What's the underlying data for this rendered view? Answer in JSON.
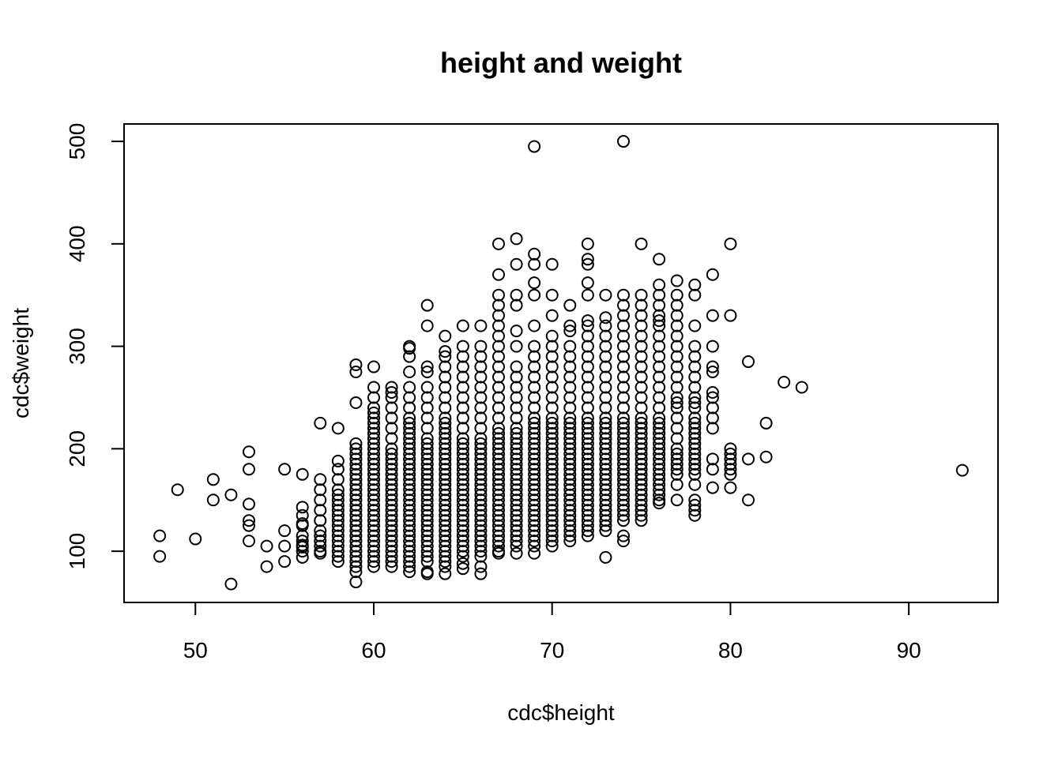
{
  "chart_data": {
    "type": "scatter",
    "title": "height and weight",
    "xlabel": "cdc$height",
    "ylabel": "cdc$weight",
    "xlim": [
      46,
      95
    ],
    "ylim": [
      50,
      517
    ],
    "x_ticks": [
      50,
      60,
      70,
      80,
      90
    ],
    "y_ticks": [
      100,
      200,
      300,
      400,
      500
    ],
    "grid": false,
    "marker": "open-circle",
    "point_color": "#000000",
    "clusters": [
      {
        "x": 56,
        "weights": [
          94,
          100,
          104,
          106,
          110,
          115,
          125,
          127,
          135,
          143,
          175
        ]
      },
      {
        "x": 57,
        "weights": [
          98,
          100,
          105,
          110,
          115,
          120,
          130,
          140,
          150,
          160,
          170,
          225
        ]
      },
      {
        "x": 58,
        "weights": [
          90,
          95,
          100,
          105,
          110,
          115,
          120,
          125,
          130,
          135,
          140,
          145,
          150,
          155,
          160,
          170,
          180,
          188,
          220
        ]
      },
      {
        "x": 59,
        "weights": [
          70,
          80,
          85,
          90,
          95,
          100,
          105,
          110,
          115,
          120,
          125,
          130,
          135,
          140,
          145,
          150,
          155,
          160,
          165,
          170,
          175,
          180,
          185,
          190,
          195,
          200,
          205,
          245,
          275,
          282
        ]
      },
      {
        "x": 60,
        "weights": [
          85,
          90,
          95,
          100,
          105,
          110,
          115,
          120,
          125,
          130,
          135,
          140,
          145,
          150,
          155,
          160,
          165,
          170,
          175,
          180,
          185,
          190,
          195,
          200,
          205,
          210,
          215,
          220,
          225,
          230,
          235,
          240,
          250,
          260,
          280
        ]
      },
      {
        "x": 61,
        "weights": [
          85,
          90,
          95,
          100,
          105,
          110,
          115,
          120,
          125,
          130,
          135,
          140,
          145,
          150,
          155,
          160,
          165,
          170,
          175,
          180,
          185,
          190,
          195,
          200,
          210,
          220,
          230,
          240,
          250,
          255,
          260
        ]
      },
      {
        "x": 62,
        "weights": [
          80,
          85,
          90,
          95,
          100,
          105,
          110,
          115,
          120,
          125,
          130,
          135,
          140,
          145,
          150,
          155,
          160,
          165,
          170,
          175,
          180,
          185,
          190,
          195,
          200,
          205,
          210,
          215,
          220,
          225,
          230,
          240,
          250,
          260,
          275,
          290,
          298,
          300
        ]
      },
      {
        "x": 63,
        "weights": [
          78,
          80,
          90,
          95,
          100,
          105,
          110,
          115,
          120,
          125,
          130,
          135,
          140,
          145,
          150,
          155,
          160,
          165,
          170,
          175,
          180,
          185,
          190,
          195,
          200,
          205,
          210,
          220,
          230,
          240,
          250,
          260,
          275,
          280,
          320,
          340
        ]
      },
      {
        "x": 64,
        "weights": [
          78,
          85,
          90,
          95,
          100,
          105,
          110,
          115,
          120,
          125,
          130,
          135,
          140,
          145,
          150,
          155,
          160,
          165,
          170,
          175,
          180,
          185,
          190,
          195,
          200,
          205,
          210,
          215,
          220,
          225,
          230,
          240,
          250,
          260,
          270,
          280,
          290,
          295,
          310
        ]
      },
      {
        "x": 65,
        "weights": [
          83,
          88,
          95,
          100,
          105,
          110,
          115,
          120,
          125,
          130,
          135,
          140,
          145,
          150,
          155,
          160,
          165,
          170,
          175,
          180,
          185,
          190,
          195,
          200,
          205,
          210,
          220,
          230,
          240,
          250,
          260,
          270,
          280,
          290,
          300,
          320
        ]
      },
      {
        "x": 66,
        "weights": [
          78,
          85,
          95,
          100,
          105,
          110,
          115,
          120,
          125,
          130,
          135,
          140,
          145,
          150,
          155,
          160,
          165,
          170,
          175,
          180,
          185,
          190,
          195,
          200,
          205,
          210,
          220,
          230,
          240,
          250,
          260,
          270,
          280,
          290,
          300,
          320
        ]
      },
      {
        "x": 67,
        "weights": [
          98,
          100,
          105,
          110,
          115,
          120,
          125,
          130,
          135,
          140,
          145,
          150,
          155,
          160,
          165,
          170,
          175,
          180,
          185,
          190,
          195,
          200,
          205,
          210,
          215,
          220,
          230,
          240,
          250,
          260,
          270,
          280,
          290,
          300,
          310,
          320,
          330,
          340,
          350,
          370,
          400
        ]
      },
      {
        "x": 68,
        "weights": [
          98,
          105,
          110,
          115,
          120,
          125,
          130,
          135,
          140,
          145,
          150,
          155,
          160,
          165,
          170,
          175,
          180,
          185,
          190,
          195,
          200,
          205,
          210,
          215,
          220,
          230,
          240,
          250,
          260,
          270,
          280,
          300,
          315,
          340,
          350,
          380,
          405
        ]
      },
      {
        "x": 69,
        "weights": [
          98,
          105,
          110,
          115,
          120,
          125,
          130,
          135,
          140,
          145,
          150,
          155,
          160,
          165,
          170,
          175,
          180,
          185,
          190,
          195,
          200,
          205,
          210,
          215,
          220,
          225,
          230,
          240,
          250,
          260,
          270,
          280,
          290,
          300,
          320,
          350,
          362,
          380,
          390,
          495
        ]
      },
      {
        "x": 70,
        "weights": [
          105,
          110,
          115,
          120,
          125,
          130,
          135,
          140,
          145,
          150,
          155,
          160,
          165,
          170,
          175,
          180,
          185,
          190,
          195,
          200,
          205,
          210,
          215,
          220,
          225,
          230,
          240,
          250,
          260,
          270,
          280,
          290,
          300,
          310,
          330,
          350,
          380
        ]
      },
      {
        "x": 71,
        "weights": [
          110,
          115,
          120,
          125,
          130,
          135,
          140,
          145,
          150,
          155,
          160,
          165,
          170,
          175,
          180,
          185,
          190,
          195,
          200,
          205,
          210,
          215,
          220,
          225,
          230,
          240,
          250,
          260,
          270,
          280,
          290,
          300,
          315,
          320,
          340
        ]
      },
      {
        "x": 72,
        "weights": [
          115,
          120,
          125,
          130,
          135,
          140,
          145,
          150,
          155,
          160,
          165,
          170,
          175,
          180,
          185,
          190,
          195,
          200,
          205,
          210,
          215,
          220,
          225,
          230,
          240,
          250,
          260,
          270,
          280,
          290,
          300,
          310,
          320,
          325,
          350,
          362,
          380,
          385,
          400
        ]
      },
      {
        "x": 73,
        "weights": [
          94,
          120,
          125,
          130,
          135,
          140,
          145,
          150,
          155,
          160,
          165,
          170,
          175,
          180,
          185,
          190,
          195,
          200,
          205,
          210,
          215,
          220,
          225,
          230,
          240,
          250,
          260,
          270,
          280,
          290,
          300,
          310,
          320,
          328,
          350
        ]
      },
      {
        "x": 74,
        "weights": [
          110,
          115,
          130,
          135,
          140,
          145,
          150,
          155,
          160,
          165,
          170,
          175,
          180,
          185,
          190,
          195,
          200,
          205,
          210,
          215,
          220,
          225,
          230,
          240,
          250,
          260,
          270,
          280,
          290,
          300,
          310,
          320,
          330,
          340,
          350,
          500
        ]
      },
      {
        "x": 75,
        "weights": [
          130,
          135,
          140,
          145,
          150,
          155,
          160,
          165,
          170,
          175,
          180,
          185,
          190,
          195,
          200,
          205,
          210,
          215,
          220,
          225,
          230,
          240,
          250,
          260,
          270,
          280,
          290,
          300,
          310,
          320,
          330,
          340,
          350,
          400
        ]
      },
      {
        "x": 76,
        "weights": [
          147,
          150,
          155,
          160,
          165,
          170,
          175,
          180,
          185,
          190,
          195,
          200,
          205,
          210,
          215,
          220,
          225,
          230,
          240,
          250,
          260,
          270,
          280,
          290,
          300,
          310,
          320,
          325,
          330,
          340,
          350,
          360,
          385
        ]
      },
      {
        "x": 77,
        "weights": [
          150,
          165,
          175,
          180,
          185,
          190,
          195,
          200,
          210,
          220,
          230,
          240,
          245,
          250,
          260,
          270,
          280,
          290,
          300,
          310,
          320,
          330,
          340,
          350,
          364
        ]
      },
      {
        "x": 78,
        "weights": [
          135,
          140,
          145,
          150,
          165,
          175,
          180,
          185,
          190,
          195,
          200,
          205,
          210,
          215,
          220,
          225,
          230,
          240,
          245,
          250,
          260,
          270,
          280,
          290,
          300,
          320,
          350,
          360
        ]
      },
      {
        "x": 79,
        "weights": [
          162,
          180,
          190,
          220,
          230,
          240,
          250,
          255,
          275,
          280,
          300,
          330,
          370
        ]
      },
      {
        "x": 80,
        "weights": [
          162,
          175,
          180,
          185,
          190,
          195,
          200,
          330,
          400
        ]
      }
    ],
    "points": [
      {
        "x": 48,
        "y": 95
      },
      {
        "x": 48,
        "y": 115
      },
      {
        "x": 49,
        "y": 160
      },
      {
        "x": 50,
        "y": 112
      },
      {
        "x": 51,
        "y": 150
      },
      {
        "x": 51,
        "y": 170
      },
      {
        "x": 52,
        "y": 68
      },
      {
        "x": 52,
        "y": 155
      },
      {
        "x": 53,
        "y": 110
      },
      {
        "x": 53,
        "y": 125
      },
      {
        "x": 53,
        "y": 130
      },
      {
        "x": 53,
        "y": 146
      },
      {
        "x": 53,
        "y": 180
      },
      {
        "x": 53,
        "y": 197
      },
      {
        "x": 54,
        "y": 85
      },
      {
        "x": 54,
        "y": 105
      },
      {
        "x": 55,
        "y": 90
      },
      {
        "x": 55,
        "y": 105
      },
      {
        "x": 55,
        "y": 120
      },
      {
        "x": 55,
        "y": 180
      },
      {
        "x": 81,
        "y": 150
      },
      {
        "x": 81,
        "y": 190
      },
      {
        "x": 81,
        "y": 285
      },
      {
        "x": 82,
        "y": 192
      },
      {
        "x": 82,
        "y": 225
      },
      {
        "x": 83,
        "y": 265
      },
      {
        "x": 84,
        "y": 260
      },
      {
        "x": 93,
        "y": 179
      }
    ]
  }
}
